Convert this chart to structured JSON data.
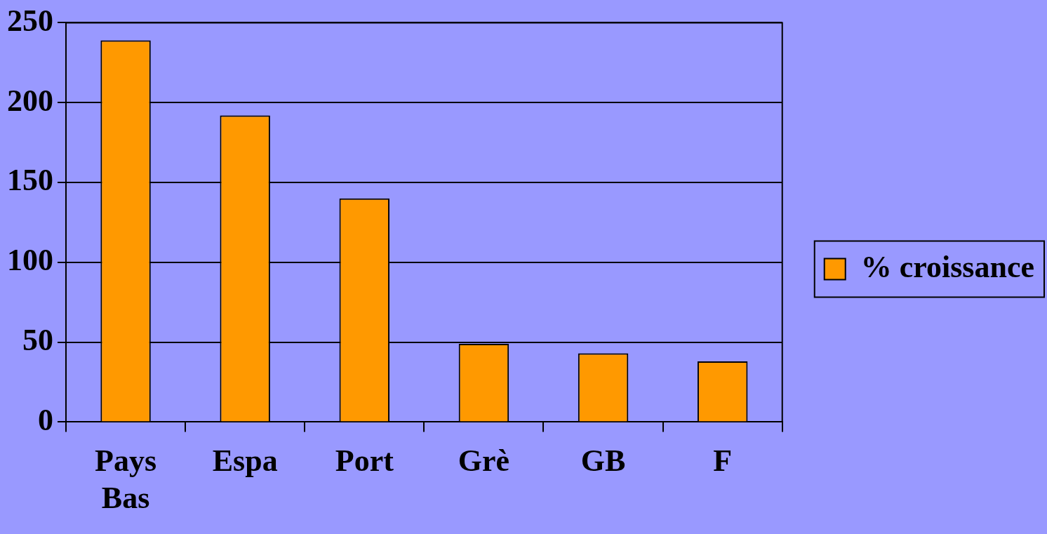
{
  "chart_data": {
    "type": "bar",
    "categories": [
      "Pays Bas",
      "Espa",
      "Port",
      "Grè",
      "GB",
      "F"
    ],
    "series": [
      {
        "name": "% croissance",
        "color": "#ff9900",
        "values": [
          239,
          192,
          140,
          49,
          43,
          38
        ]
      }
    ],
    "ylim": [
      0,
      250
    ],
    "yticks": [
      0,
      50,
      100,
      150,
      200,
      250
    ],
    "grid": "y",
    "legend": "right"
  }
}
